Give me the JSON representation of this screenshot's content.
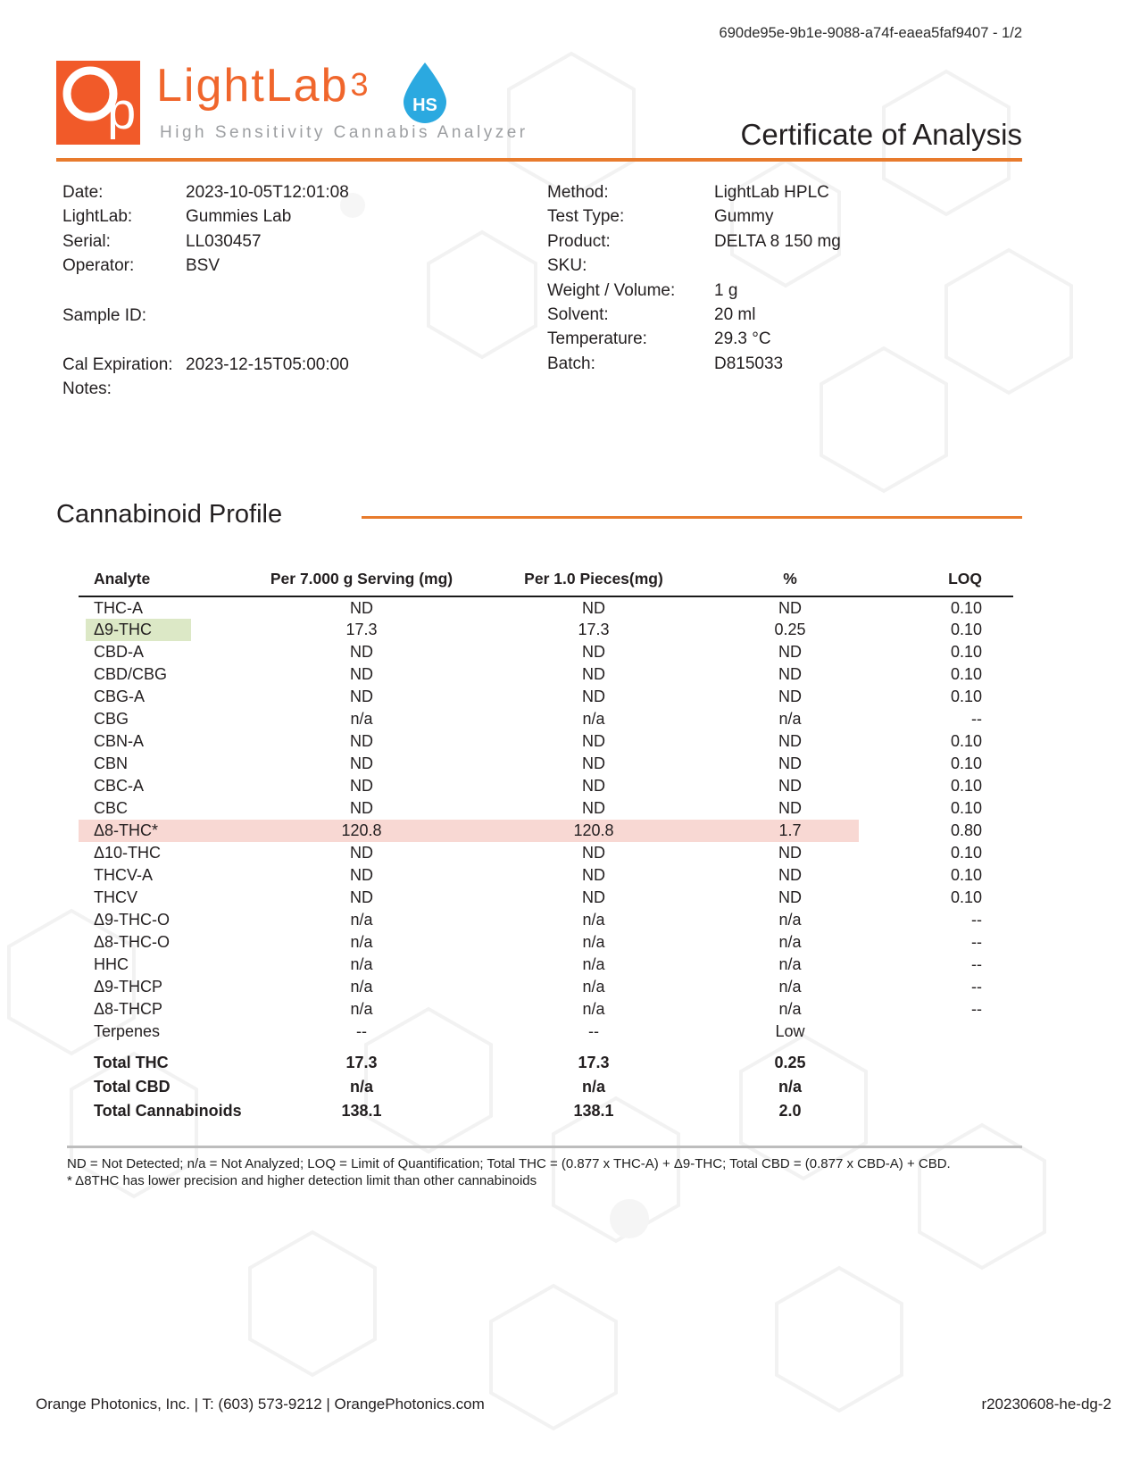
{
  "page": {
    "doc_id": "690de95e-9b1e-9088-a74f-eaea5faf9407 - 1/2"
  },
  "header": {
    "logo": {
      "monogram": "p",
      "brand": "LightLab",
      "version": "3",
      "badge": "HS",
      "tagline": "High Sensitivity Cannabis Analyzer"
    },
    "title": "Certificate of Analysis"
  },
  "info_left": {
    "rows": [
      {
        "label": "Date:",
        "value": "2023-10-05T12:01:08"
      },
      {
        "label": "LightLab:",
        "value": "Gummies Lab"
      },
      {
        "label": "Serial:",
        "value": "LL030457"
      },
      {
        "label": "Operator:",
        "value": "BSV"
      },
      {
        "label": "Sample ID:",
        "value": ""
      },
      {
        "label": "Cal Expiration:",
        "value": "2023-12-15T05:00:00"
      },
      {
        "label": "Notes:",
        "value": ""
      }
    ]
  },
  "info_right": {
    "rows": [
      {
        "label": "Method:",
        "value": "LightLab HPLC"
      },
      {
        "label": "Test Type:",
        "value": "Gummy"
      },
      {
        "label": "Product:",
        "value": "DELTA 8 150 mg"
      },
      {
        "label": "SKU:",
        "value": ""
      },
      {
        "label": "Weight / Volume:",
        "value": "1 g"
      },
      {
        "label": "Solvent:",
        "value": "20 ml"
      },
      {
        "label": "Temperature:",
        "value": "29.3 °C"
      },
      {
        "label": "Batch:",
        "value": "D815033"
      }
    ]
  },
  "section": {
    "title": "Cannabinoid Profile"
  },
  "table": {
    "headers": [
      "Analyte",
      "Per 7.000 g Serving (mg)",
      "Per 1.0 Pieces(mg)",
      "%",
      "LOQ"
    ],
    "rows": [
      {
        "analyte": "THC-A",
        "serving": "ND",
        "pieces": "ND",
        "pct": "ND",
        "loq": "0.10",
        "highlight": ""
      },
      {
        "analyte": "Δ9-THC",
        "serving": "17.3",
        "pieces": "17.3",
        "pct": "0.25",
        "loq": "0.10",
        "highlight": "green"
      },
      {
        "analyte": "CBD-A",
        "serving": "ND",
        "pieces": "ND",
        "pct": "ND",
        "loq": "0.10",
        "highlight": ""
      },
      {
        "analyte": "CBD/CBG",
        "serving": "ND",
        "pieces": "ND",
        "pct": "ND",
        "loq": "0.10",
        "highlight": ""
      },
      {
        "analyte": "CBG-A",
        "serving": "ND",
        "pieces": "ND",
        "pct": "ND",
        "loq": "0.10",
        "highlight": ""
      },
      {
        "analyte": "CBG",
        "serving": "n/a",
        "pieces": "n/a",
        "pct": "n/a",
        "loq": "--",
        "highlight": ""
      },
      {
        "analyte": "CBN-A",
        "serving": "ND",
        "pieces": "ND",
        "pct": "ND",
        "loq": "0.10",
        "highlight": ""
      },
      {
        "analyte": "CBN",
        "serving": "ND",
        "pieces": "ND",
        "pct": "ND",
        "loq": "0.10",
        "highlight": ""
      },
      {
        "analyte": "CBC-A",
        "serving": "ND",
        "pieces": "ND",
        "pct": "ND",
        "loq": "0.10",
        "highlight": ""
      },
      {
        "analyte": "CBC",
        "serving": "ND",
        "pieces": "ND",
        "pct": "ND",
        "loq": "0.10",
        "highlight": ""
      },
      {
        "analyte": "Δ8-THC*",
        "serving": "120.8",
        "pieces": "120.8",
        "pct": "1.7",
        "loq": "0.80",
        "highlight": "pink"
      },
      {
        "analyte": "Δ10-THC",
        "serving": "ND",
        "pieces": "ND",
        "pct": "ND",
        "loq": "0.10",
        "highlight": ""
      },
      {
        "analyte": "THCV-A",
        "serving": "ND",
        "pieces": "ND",
        "pct": "ND",
        "loq": "0.10",
        "highlight": ""
      },
      {
        "analyte": "THCV",
        "serving": "ND",
        "pieces": "ND",
        "pct": "ND",
        "loq": "0.10",
        "highlight": ""
      },
      {
        "analyte": "Δ9-THC-O",
        "serving": "n/a",
        "pieces": "n/a",
        "pct": "n/a",
        "loq": "--",
        "highlight": ""
      },
      {
        "analyte": "Δ8-THC-O",
        "serving": "n/a",
        "pieces": "n/a",
        "pct": "n/a",
        "loq": "--",
        "highlight": ""
      },
      {
        "analyte": "HHC",
        "serving": "n/a",
        "pieces": "n/a",
        "pct": "n/a",
        "loq": "--",
        "highlight": ""
      },
      {
        "analyte": "Δ9-THCP",
        "serving": "n/a",
        "pieces": "n/a",
        "pct": "n/a",
        "loq": "--",
        "highlight": ""
      },
      {
        "analyte": "Δ8-THCP",
        "serving": "n/a",
        "pieces": "n/a",
        "pct": "n/a",
        "loq": "--",
        "highlight": ""
      },
      {
        "analyte": "Terpenes",
        "serving": "--",
        "pieces": "--",
        "pct": "Low",
        "loq": "",
        "highlight": ""
      }
    ],
    "totals": [
      {
        "analyte": "Total THC",
        "serving": "17.3",
        "pieces": "17.3",
        "pct": "0.25",
        "loq": ""
      },
      {
        "analyte": "Total CBD",
        "serving": "n/a",
        "pieces": "n/a",
        "pct": "n/a",
        "loq": ""
      },
      {
        "analyte": "Total Cannabinoids",
        "serving": "138.1",
        "pieces": "138.1",
        "pct": "2.0",
        "loq": ""
      }
    ]
  },
  "footnotes": {
    "line1": "ND = Not Detected; n/a = Not Analyzed;  LOQ = Limit of Quantification; Total THC = (0.877 x THC-A) + Δ9-THC; Total CBD = (0.877 x CBD-A) + CBD.",
    "line2": "* Δ8THC has lower precision and higher detection limit than other cannabinoids"
  },
  "footer": {
    "left": "Orange Photonics, Inc. | T: (603) 573-9212 | OrangePhotonics.com",
    "right": "r20230608-he-dg-2"
  },
  "colors": {
    "accent_orange": "#e87b2d",
    "logo_orange": "#f15a29",
    "badge_blue": "#2ba9e0",
    "highlight_green": "#dce8c6",
    "highlight_pink": "#f8d8d3",
    "tagline_gray": "#9d9fa2"
  }
}
